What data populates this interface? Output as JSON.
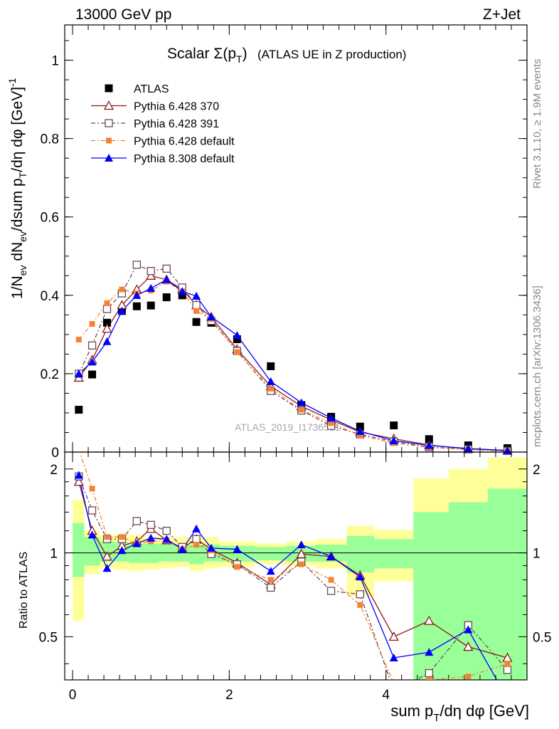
{
  "header": {
    "left": "13000 GeV pp",
    "right": "Z+Jet"
  },
  "plot_title": {
    "main": "Scalar Σ(p",
    "sub": "T",
    "close": ")",
    "rest": "(ATLAS UE in Z production)"
  },
  "side_labels": {
    "rivet": "Rivet 3.1.10, ≥ 1.9M events",
    "mcplots": "mcplots.cern.ch [arXiv:1306.3436]"
  },
  "watermark": "ATLAS_2019_I1736531",
  "axes": {
    "ylabel_main": "1/N_ev dN_ev/dsum p_T/dη dφ [GeV]^-1",
    "ylabel_ratio": "Ratio to ATLAS",
    "xlabel": "sum p_T/dη dφ [GeV]"
  },
  "colors": {
    "atlas": "#000000",
    "p370": "#8b1a1a",
    "p391": "#6b4a55",
    "p6def": "#f58233",
    "p8def": "#0000ff",
    "band_green": "#99ff99",
    "band_yellow": "#ffff99"
  },
  "legend": [
    {
      "key": "atlas",
      "label": "ATLAS"
    },
    {
      "key": "p370",
      "label": "Pythia 6.428 370"
    },
    {
      "key": "p391",
      "label": "Pythia 6.428 391"
    },
    {
      "key": "p6def",
      "label": "Pythia 6.428 default"
    },
    {
      "key": "p8def",
      "label": "Pythia 8.308 default"
    }
  ],
  "chart_data": {
    "type": "scatter",
    "xlim": [
      -0.1,
      5.8
    ],
    "ylim_main": [
      0,
      1.09
    ],
    "ylim_ratio": [
      0.35,
      2.3
    ],
    "x_ticks": [
      0,
      2,
      4
    ],
    "y_ticks_main": [
      0,
      0.2,
      0.4,
      0.6,
      0.8,
      1
    ],
    "y_ticks_ratio": [
      0.5,
      1,
      2
    ],
    "x": [
      0.08,
      0.25,
      0.44,
      0.63,
      0.82,
      1.0,
      1.2,
      1.4,
      1.58,
      1.77,
      2.1,
      2.53,
      2.92,
      3.3,
      3.67,
      4.1,
      4.55,
      5.05,
      5.55
    ],
    "bin_edges": [
      0,
      0.15,
      0.35,
      0.53,
      0.72,
      0.91,
      1.1,
      1.3,
      1.49,
      1.68,
      1.87,
      2.33,
      2.73,
      3.1,
      3.5,
      3.85,
      4.35,
      4.8,
      5.3,
      5.8
    ],
    "series": [
      {
        "key": "atlas",
        "name": "ATLAS",
        "values": [
          0.108,
          0.198,
          0.33,
          0.36,
          0.372,
          0.374,
          0.395,
          0.4,
          0.332,
          0.33,
          0.288,
          0.219,
          0.12,
          0.09,
          0.065,
          0.068,
          0.033,
          0.017,
          0.01
        ]
      },
      {
        "key": "p370",
        "name": "Pythia 6.428 370",
        "values": [
          0.19,
          0.235,
          0.315,
          0.375,
          0.415,
          0.45,
          0.44,
          0.415,
          0.375,
          0.345,
          0.262,
          0.168,
          0.117,
          0.082,
          0.051,
          0.034,
          0.018,
          0.008,
          0.004
        ]
      },
      {
        "key": "p391",
        "name": "Pythia 6.428 391",
        "values": [
          0.2,
          0.272,
          0.365,
          0.405,
          0.478,
          0.462,
          0.468,
          0.42,
          0.375,
          0.335,
          0.258,
          0.156,
          0.106,
          0.067,
          0.045,
          0.027,
          0.013,
          0.007,
          0.003
        ]
      },
      {
        "key": "p6def",
        "name": "Pythia 6.428 default",
        "values": [
          0.287,
          0.327,
          0.38,
          0.415,
          0.405,
          0.412,
          0.435,
          0.41,
          0.36,
          0.34,
          0.255,
          0.162,
          0.108,
          0.074,
          0.042,
          0.023,
          0.012,
          0.006,
          0.003
        ]
      },
      {
        "key": "p8def",
        "name": "Pythia 8.308 default",
        "values": [
          0.2,
          0.23,
          0.282,
          0.36,
          0.4,
          0.418,
          0.44,
          0.41,
          0.398,
          0.345,
          0.298,
          0.18,
          0.126,
          0.087,
          0.053,
          0.029,
          0.017,
          0.009,
          0.004
        ]
      }
    ],
    "ratio_series": [
      {
        "key": "p370",
        "values": [
          1.8,
          1.2,
          0.97,
          1.06,
          1.1,
          1.22,
          1.11,
          1.04,
          1.12,
          1.03,
          0.92,
          0.77,
          0.99,
          0.97,
          0.83,
          0.5,
          0.57,
          0.46,
          0.42
        ]
      },
      {
        "key": "p391",
        "values": [
          1.88,
          1.42,
          1.12,
          1.12,
          1.3,
          1.26,
          1.2,
          1.05,
          1.12,
          0.99,
          0.91,
          0.75,
          0.93,
          0.73,
          0.71,
          0.32,
          0.37,
          0.55,
          0.38
        ]
      },
      {
        "key": "p6def",
        "values": [
          2.35,
          1.7,
          1.14,
          1.14,
          1.08,
          1.1,
          1.11,
          1.03,
          1.07,
          1.02,
          0.89,
          0.8,
          0.91,
          0.8,
          0.65,
          0.34,
          0.35,
          0.36,
          0.4
        ]
      },
      {
        "key": "p8def",
        "values": [
          1.9,
          1.16,
          0.88,
          1.02,
          1.08,
          1.13,
          1.12,
          1.03,
          1.22,
          1.04,
          1.03,
          0.86,
          1.07,
          0.97,
          0.82,
          0.42,
          0.44,
          0.53,
          0.3
        ]
      }
    ],
    "band_green": [
      [
        0.82,
        1.28
      ],
      [
        0.9,
        1.14
      ],
      [
        0.93,
        1.1
      ],
      [
        0.93,
        1.09
      ],
      [
        0.92,
        1.08
      ],
      [
        0.92,
        1.08
      ],
      [
        0.93,
        1.08
      ],
      [
        0.93,
        1.07
      ],
      [
        0.91,
        1.07
      ],
      [
        0.93,
        1.07
      ],
      [
        0.93,
        1.06
      ],
      [
        0.94,
        1.05
      ],
      [
        0.93,
        1.06
      ],
      [
        0.93,
        1.07
      ],
      [
        0.85,
        1.15
      ],
      [
        0.88,
        1.12
      ],
      [
        0.2,
        1.4
      ],
      [
        0.2,
        1.52
      ],
      [
        0.2,
        1.7
      ]
    ],
    "band_yellow": [
      [
        0.57,
        1.55
      ],
      [
        0.84,
        1.2
      ],
      [
        0.88,
        1.15
      ],
      [
        0.87,
        1.17
      ],
      [
        0.86,
        1.16
      ],
      [
        0.87,
        1.14
      ],
      [
        0.88,
        1.14
      ],
      [
        0.89,
        1.14
      ],
      [
        0.86,
        1.14
      ],
      [
        0.88,
        1.14
      ],
      [
        0.89,
        1.1
      ],
      [
        0.91,
        1.08
      ],
      [
        0.9,
        1.1
      ],
      [
        0.88,
        1.12
      ],
      [
        0.7,
        1.25
      ],
      [
        0.79,
        1.21
      ],
      [
        0.2,
        1.85
      ],
      [
        0.2,
        2.0
      ],
      [
        0.2,
        2.2
      ]
    ]
  }
}
